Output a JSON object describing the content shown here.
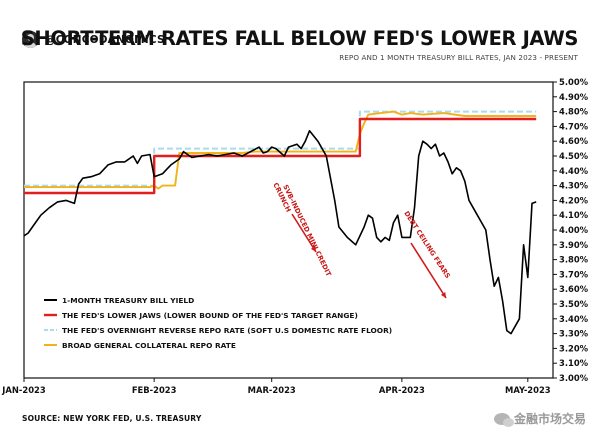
{
  "header": {
    "handle": "@CONCODANOMICS",
    "title": "SHORT-TERM RATES FALL BELOW FED'S LOWER JAWS",
    "subtitle": "REPO AND 1 MONTH TREASURY BILL RATES, JAN 2023 - PRESENT"
  },
  "footer": {
    "source": "SOURCE: NEW YORK FED, U.S. TREASURY",
    "watermark": "金融市场交易"
  },
  "chart_data": {
    "type": "line",
    "x_unit": "day of 2023 (Jan 1 = day 0)",
    "x_tick_labels": [
      "JAN-2023",
      "FEB-2023",
      "MAR-2023",
      "APR-2023",
      "MAY-2023"
    ],
    "x_tick_days": [
      0,
      31,
      59,
      90,
      120
    ],
    "ylim": [
      3.0,
      5.0
    ],
    "y_tick_labels": [
      "5.00%",
      "4.90%",
      "4.80%",
      "4.70%",
      "4.60%",
      "4.50%",
      "4.40%",
      "4.30%",
      "4.20%",
      "4.10%",
      "4.00%",
      "3.90%",
      "3.80%",
      "3.70%",
      "3.60%",
      "3.50%",
      "3.40%",
      "3.30%",
      "3.20%",
      "3.10%",
      "3.00%"
    ],
    "y_tick_values": [
      5.0,
      4.9,
      4.8,
      4.7,
      4.6,
      4.5,
      4.4,
      4.3,
      4.2,
      4.1,
      4.0,
      3.9,
      3.8,
      3.7,
      3.6,
      3.5,
      3.4,
      3.3,
      3.2,
      3.1,
      3.0
    ],
    "grid": false,
    "legend_position": "bottom-left",
    "series": [
      {
        "name": "1-MONTH TREASURY BILL YIELD",
        "color": "#000000",
        "points": [
          [
            0,
            3.96
          ],
          [
            1,
            3.98
          ],
          [
            2,
            4.02
          ],
          [
            4,
            4.1
          ],
          [
            6,
            4.15
          ],
          [
            8,
            4.19
          ],
          [
            10,
            4.2
          ],
          [
            12,
            4.18
          ],
          [
            13,
            4.31
          ],
          [
            14,
            4.35
          ],
          [
            16,
            4.36
          ],
          [
            18,
            4.38
          ],
          [
            20,
            4.44
          ],
          [
            22,
            4.46
          ],
          [
            24,
            4.46
          ],
          [
            26,
            4.5
          ],
          [
            27,
            4.45
          ],
          [
            28,
            4.5
          ],
          [
            30,
            4.51
          ],
          [
            31,
            4.36
          ],
          [
            33,
            4.38
          ],
          [
            34,
            4.41
          ],
          [
            35,
            4.44
          ],
          [
            37,
            4.48
          ],
          [
            38,
            4.53
          ],
          [
            40,
            4.49
          ],
          [
            42,
            4.5
          ],
          [
            44,
            4.51
          ],
          [
            46,
            4.5
          ],
          [
            48,
            4.51
          ],
          [
            50,
            4.52
          ],
          [
            52,
            4.5
          ],
          [
            54,
            4.53
          ],
          [
            56,
            4.56
          ],
          [
            57,
            4.52
          ],
          [
            58,
            4.53
          ],
          [
            59,
            4.56
          ],
          [
            60,
            4.55
          ],
          [
            62,
            4.5
          ],
          [
            63,
            4.56
          ],
          [
            65,
            4.58
          ],
          [
            66,
            4.55
          ],
          [
            67,
            4.6
          ],
          [
            68,
            4.67
          ],
          [
            70,
            4.6
          ],
          [
            72,
            4.5
          ],
          [
            73,
            4.35
          ],
          [
            74,
            4.2
          ],
          [
            75,
            4.02
          ],
          [
            77,
            3.95
          ],
          [
            79,
            3.9
          ],
          [
            81,
            4.02
          ],
          [
            82,
            4.1
          ],
          [
            83,
            4.08
          ],
          [
            84,
            3.95
          ],
          [
            85,
            3.92
          ],
          [
            86,
            3.95
          ],
          [
            87,
            3.93
          ],
          [
            88,
            4.05
          ],
          [
            89,
            4.1
          ],
          [
            90,
            3.95
          ],
          [
            92,
            3.95
          ],
          [
            93,
            4.15
          ],
          [
            94,
            4.5
          ],
          [
            95,
            4.6
          ],
          [
            96,
            4.58
          ],
          [
            97,
            4.55
          ],
          [
            98,
            4.58
          ],
          [
            99,
            4.5
          ],
          [
            100,
            4.52
          ],
          [
            101,
            4.46
          ],
          [
            102,
            4.38
          ],
          [
            103,
            4.42
          ],
          [
            104,
            4.4
          ],
          [
            105,
            4.33
          ],
          [
            106,
            4.2
          ],
          [
            107,
            4.15
          ],
          [
            108,
            4.1
          ],
          [
            109,
            4.05
          ],
          [
            110,
            4.0
          ],
          [
            111,
            3.8
          ],
          [
            112,
            3.62
          ],
          [
            113,
            3.68
          ],
          [
            114,
            3.52
          ],
          [
            115,
            3.32
          ],
          [
            116,
            3.3
          ],
          [
            117,
            3.35
          ],
          [
            118,
            3.4
          ],
          [
            119,
            3.9
          ],
          [
            120,
            3.68
          ],
          [
            121,
            4.18
          ],
          [
            122,
            4.19
          ]
        ]
      },
      {
        "name": "THE FED'S LOWER JAWS (LOWER BOUND OF THE FED'S TARGET RANGE)",
        "color": "#e11f1f",
        "points": [
          [
            0,
            4.25
          ],
          [
            31,
            4.25
          ],
          [
            31,
            4.5
          ],
          [
            80,
            4.5
          ],
          [
            80,
            4.75
          ],
          [
            122,
            4.75
          ]
        ]
      },
      {
        "name": "THE FED'S OVERNIGHT REVERSE REPO RATE (SOFT U.S DOMESTIC RATE FLOOR)",
        "color": "#a9dcee",
        "dashed": true,
        "points": [
          [
            0,
            4.3
          ],
          [
            31,
            4.3
          ],
          [
            31,
            4.55
          ],
          [
            80,
            4.55
          ],
          [
            80,
            4.8
          ],
          [
            122,
            4.8
          ]
        ]
      },
      {
        "name": "BROAD GENERAL COLLATERAL REPO RATE",
        "color": "#f2b318",
        "points": [
          [
            0,
            4.29
          ],
          [
            30,
            4.29
          ],
          [
            31,
            4.3
          ],
          [
            32,
            4.28
          ],
          [
            33,
            4.3
          ],
          [
            36,
            4.3
          ],
          [
            37,
            4.52
          ],
          [
            50,
            4.52
          ],
          [
            52,
            4.52
          ],
          [
            55,
            4.53
          ],
          [
            79,
            4.53
          ],
          [
            80,
            4.65
          ],
          [
            81,
            4.72
          ],
          [
            82,
            4.78
          ],
          [
            85,
            4.79
          ],
          [
            88,
            4.8
          ],
          [
            90,
            4.78
          ],
          [
            92,
            4.79
          ],
          [
            95,
            4.78
          ],
          [
            100,
            4.79
          ],
          [
            105,
            4.77
          ],
          [
            110,
            4.77
          ],
          [
            115,
            4.77
          ],
          [
            122,
            4.77
          ]
        ]
      }
    ],
    "annotations": [
      {
        "text": "SVB-INDUCED MINI CREDIT CRUNCH"
      },
      {
        "text": "DEBT CEILING FEARS"
      }
    ]
  }
}
